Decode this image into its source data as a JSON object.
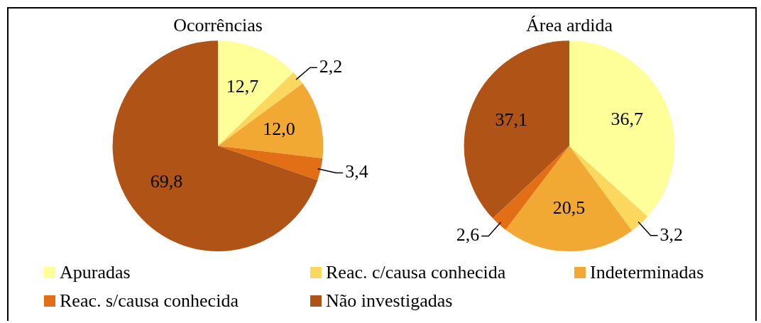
{
  "chart_data": [
    {
      "type": "pie",
      "title": "Ocorrências",
      "categories": [
        "Apuradas",
        "Reac. c/causa conhecida",
        "Indeterminadas",
        "Reac. s/causa conhecida",
        "Não investigadas"
      ],
      "values": [
        12.7,
        2.2,
        12.0,
        3.4,
        69.8
      ],
      "value_labels": [
        "12,7",
        "2,2",
        "12,0",
        "3,4",
        "69,8"
      ],
      "colors": [
        "#ffff99",
        "#fcd75e",
        "#f2a934",
        "#e26e16",
        "#b05316"
      ],
      "legend": "bottom"
    },
    {
      "type": "pie",
      "title": "Área ardida",
      "categories": [
        null,
        null,
        null,
        null,
        null
      ],
      "values": [
        36.7,
        3.2,
        20.5,
        2.6,
        37.1
      ],
      "value_labels": [
        "36,7",
        "3,2",
        "20,5",
        "2,6",
        "37,1"
      ],
      "colors": [
        "#ffff99",
        "#fcd75e",
        "#f2a934",
        "#e26e16",
        "#b05316"
      ]
    }
  ]
}
